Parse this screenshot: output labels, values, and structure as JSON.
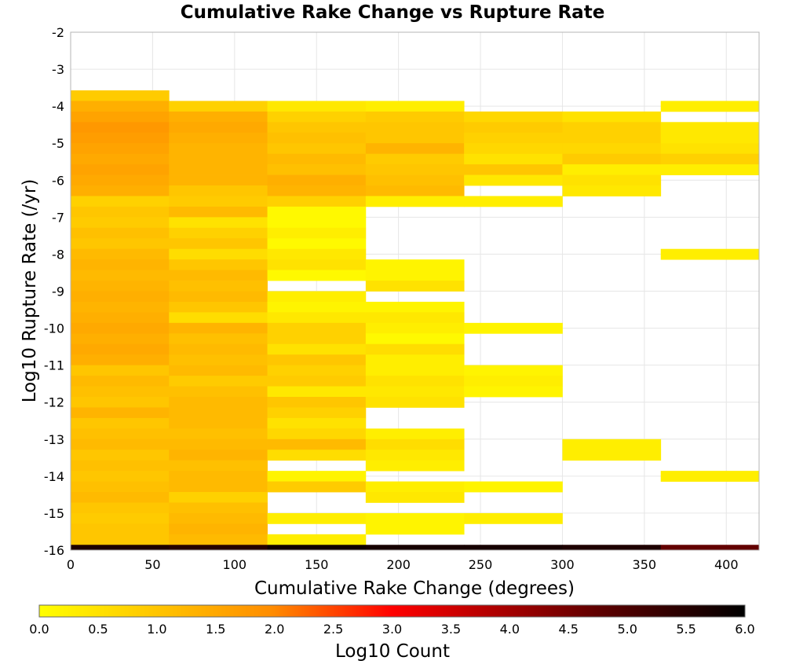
{
  "chart_data": {
    "type": "heatmap",
    "title": "Cumulative Rake Change vs Rupture Rate",
    "xlabel": "Cumulative Rake Change (degrees)",
    "ylabel": "Log10 Rupture Rate (/yr)",
    "xlim": [
      0,
      420
    ],
    "ylim": [
      -16,
      -2
    ],
    "x_ticks": [
      0,
      50,
      100,
      150,
      200,
      250,
      300,
      350,
      400
    ],
    "y_ticks": [
      -2,
      -3,
      -4,
      -5,
      -6,
      -7,
      -8,
      -9,
      -10,
      -11,
      -12,
      -13,
      -14,
      -15,
      -16
    ],
    "grid": true,
    "x_bin_width": 60,
    "y_bin_height": 0.2857,
    "x_bins": [
      0,
      60,
      120,
      180,
      240,
      300,
      360
    ],
    "colorbar": {
      "label": "Log10 Count",
      "min": 0.0,
      "max": 6.0,
      "ticks": [
        "0.0",
        "0.5",
        "1.0",
        "1.5",
        "2.0",
        "2.5",
        "3.0",
        "3.5",
        "4.0",
        "4.5",
        "5.0",
        "5.5",
        "6.0"
      ],
      "placement": "bottom"
    },
    "columns": [
      {
        "x": 0,
        "cells": [
          {
            "y": -3.714,
            "v": 0.9
          },
          {
            "y": -4.0,
            "v": 1.4
          },
          {
            "y": -4.286,
            "v": 1.6
          },
          {
            "y": -4.571,
            "v": 1.8
          },
          {
            "y": -4.857,
            "v": 1.7
          },
          {
            "y": -5.143,
            "v": 1.6
          },
          {
            "y": -5.429,
            "v": 1.5
          },
          {
            "y": -5.714,
            "v": 1.6
          },
          {
            "y": -6.0,
            "v": 1.5
          },
          {
            "y": -6.286,
            "v": 1.4
          },
          {
            "y": -6.571,
            "v": 0.8
          },
          {
            "y": -6.857,
            "v": 1.0
          },
          {
            "y": -7.143,
            "v": 0.9
          },
          {
            "y": -7.429,
            "v": 1.1
          },
          {
            "y": -7.714,
            "v": 1.0
          },
          {
            "y": -8.0,
            "v": 1.2
          },
          {
            "y": -8.286,
            "v": 1.3
          },
          {
            "y": -8.571,
            "v": 1.2
          },
          {
            "y": -8.857,
            "v": 1.3
          },
          {
            "y": -9.143,
            "v": 1.4
          },
          {
            "y": -9.429,
            "v": 1.3
          },
          {
            "y": -9.714,
            "v": 1.4
          },
          {
            "y": -10.0,
            "v": 1.5
          },
          {
            "y": -10.286,
            "v": 1.4
          },
          {
            "y": -10.571,
            "v": 1.5
          },
          {
            "y": -10.857,
            "v": 1.4
          },
          {
            "y": -11.143,
            "v": 1.0
          },
          {
            "y": -11.429,
            "v": 1.2
          },
          {
            "y": -11.714,
            "v": 1.1
          },
          {
            "y": -12.0,
            "v": 1.0
          },
          {
            "y": -12.286,
            "v": 1.3
          },
          {
            "y": -12.571,
            "v": 1.0
          },
          {
            "y": -12.857,
            "v": 1.1
          },
          {
            "y": -13.143,
            "v": 1.2
          },
          {
            "y": -13.429,
            "v": 1.0
          },
          {
            "y": -13.714,
            "v": 1.1
          },
          {
            "y": -14.0,
            "v": 1.0
          },
          {
            "y": -14.286,
            "v": 1.1
          },
          {
            "y": -14.571,
            "v": 1.2
          },
          {
            "y": -14.857,
            "v": 1.0
          },
          {
            "y": -15.143,
            "v": 0.9
          },
          {
            "y": -15.429,
            "v": 1.0
          },
          {
            "y": -15.714,
            "v": 1.0
          },
          {
            "y": -16.0,
            "v": 5.6
          }
        ]
      },
      {
        "x": 60,
        "cells": [
          {
            "y": -4.0,
            "v": 0.8
          },
          {
            "y": -4.286,
            "v": 1.4
          },
          {
            "y": -4.571,
            "v": 1.5
          },
          {
            "y": -4.857,
            "v": 1.4
          },
          {
            "y": -5.143,
            "v": 1.3
          },
          {
            "y": -5.429,
            "v": 1.3
          },
          {
            "y": -5.714,
            "v": 1.3
          },
          {
            "y": -6.0,
            "v": 1.3
          },
          {
            "y": -6.286,
            "v": 1.0
          },
          {
            "y": -6.571,
            "v": 0.9
          },
          {
            "y": -6.857,
            "v": 1.2
          },
          {
            "y": -7.143,
            "v": 0.5
          },
          {
            "y": -7.429,
            "v": 0.8
          },
          {
            "y": -7.714,
            "v": 1.0
          },
          {
            "y": -8.0,
            "v": 0.6
          },
          {
            "y": -8.286,
            "v": 1.0
          },
          {
            "y": -8.571,
            "v": 1.2
          },
          {
            "y": -8.857,
            "v": 1.1
          },
          {
            "y": -9.143,
            "v": 1.2
          },
          {
            "y": -9.429,
            "v": 1.0
          },
          {
            "y": -9.714,
            "v": 0.6
          },
          {
            "y": -10.0,
            "v": 1.3
          },
          {
            "y": -10.286,
            "v": 1.1
          },
          {
            "y": -10.571,
            "v": 1.2
          },
          {
            "y": -10.857,
            "v": 1.1
          },
          {
            "y": -11.143,
            "v": 1.2
          },
          {
            "y": -11.429,
            "v": 0.9
          },
          {
            "y": -11.714,
            "v": 1.1
          },
          {
            "y": -12.0,
            "v": 1.2
          },
          {
            "y": -12.286,
            "v": 1.2
          },
          {
            "y": -12.571,
            "v": 1.2
          },
          {
            "y": -12.857,
            "v": 1.1
          },
          {
            "y": -13.143,
            "v": 1.2
          },
          {
            "y": -13.429,
            "v": 1.3
          },
          {
            "y": -13.714,
            "v": 1.1
          },
          {
            "y": -14.0,
            "v": 1.2
          },
          {
            "y": -14.286,
            "v": 1.2
          },
          {
            "y": -14.571,
            "v": 0.8
          },
          {
            "y": -14.857,
            "v": 1.1
          },
          {
            "y": -15.143,
            "v": 1.2
          },
          {
            "y": -15.429,
            "v": 1.3
          },
          {
            "y": -15.714,
            "v": 1.2
          },
          {
            "y": -16.0,
            "v": 5.5
          }
        ]
      },
      {
        "x": 120,
        "cells": [
          {
            "y": -4.0,
            "v": 0.4
          },
          {
            "y": -4.286,
            "v": 0.8
          },
          {
            "y": -4.571,
            "v": 1.0
          },
          {
            "y": -4.857,
            "v": 1.1
          },
          {
            "y": -5.143,
            "v": 1.0
          },
          {
            "y": -5.429,
            "v": 1.2
          },
          {
            "y": -5.714,
            "v": 1.1
          },
          {
            "y": -6.0,
            "v": 1.4
          },
          {
            "y": -6.286,
            "v": 1.3
          },
          {
            "y": -6.571,
            "v": 0.8
          },
          {
            "y": -6.857,
            "v": 0.1
          },
          {
            "y": -7.143,
            "v": 0.1
          },
          {
            "y": -7.429,
            "v": 0.3
          },
          {
            "y": -7.714,
            "v": 0.1
          },
          {
            "y": -8.0,
            "v": 0.4
          },
          {
            "y": -8.286,
            "v": 0.5
          },
          {
            "y": -8.571,
            "v": 0.1
          },
          {
            "y": -9.143,
            "v": 0.3
          },
          {
            "y": -9.429,
            "v": 0.2
          },
          {
            "y": -9.714,
            "v": 0.4
          },
          {
            "y": -10.0,
            "v": 0.8
          },
          {
            "y": -10.286,
            "v": 0.8
          },
          {
            "y": -10.571,
            "v": 0.5
          },
          {
            "y": -10.857,
            "v": 1.0
          },
          {
            "y": -11.143,
            "v": 0.8
          },
          {
            "y": -11.429,
            "v": 0.9
          },
          {
            "y": -11.714,
            "v": 0.4
          },
          {
            "y": -12.0,
            "v": 1.0
          },
          {
            "y": -12.286,
            "v": 0.8
          },
          {
            "y": -12.571,
            "v": 0.5
          },
          {
            "y": -12.857,
            "v": 0.7
          },
          {
            "y": -13.143,
            "v": 1.2
          },
          {
            "y": -13.429,
            "v": 0.6
          },
          {
            "y": -14.0,
            "v": 0.2
          },
          {
            "y": -14.286,
            "v": 0.9
          },
          {
            "y": -15.143,
            "v": 0.3
          },
          {
            "y": -15.714,
            "v": 0.3
          },
          {
            "y": -16.0,
            "v": 5.8
          }
        ]
      },
      {
        "x": 180,
        "cells": [
          {
            "y": -4.0,
            "v": 0.3
          },
          {
            "y": -4.286,
            "v": 0.9
          },
          {
            "y": -4.571,
            "v": 1.0
          },
          {
            "y": -4.857,
            "v": 1.0
          },
          {
            "y": -5.143,
            "v": 1.3
          },
          {
            "y": -5.429,
            "v": 0.9
          },
          {
            "y": -5.714,
            "v": 1.0
          },
          {
            "y": -6.0,
            "v": 1.1
          },
          {
            "y": -6.286,
            "v": 1.2
          },
          {
            "y": -6.571,
            "v": 0.3
          },
          {
            "y": -8.286,
            "v": 0.2
          },
          {
            "y": -8.571,
            "v": 0.2
          },
          {
            "y": -8.857,
            "v": 0.5
          },
          {
            "y": -9.429,
            "v": 0.2
          },
          {
            "y": -9.714,
            "v": 0.4
          },
          {
            "y": -10.0,
            "v": 0.3
          },
          {
            "y": -10.286,
            "v": 0.1
          },
          {
            "y": -10.571,
            "v": 0.6
          },
          {
            "y": -10.857,
            "v": 0.3
          },
          {
            "y": -11.143,
            "v": 0.3
          },
          {
            "y": -11.429,
            "v": 0.5
          },
          {
            "y": -11.714,
            "v": 0.4
          },
          {
            "y": -12.0,
            "v": 0.5
          },
          {
            "y": -12.857,
            "v": 0.3
          },
          {
            "y": -13.143,
            "v": 0.6
          },
          {
            "y": -13.429,
            "v": 0.4
          },
          {
            "y": -13.714,
            "v": 0.3
          },
          {
            "y": -14.286,
            "v": 0.3
          },
          {
            "y": -14.571,
            "v": 0.4
          },
          {
            "y": -15.143,
            "v": 0.2
          },
          {
            "y": -15.429,
            "v": 0.2
          },
          {
            "y": -16.0,
            "v": 5.7
          }
        ]
      },
      {
        "x": 240,
        "cells": [
          {
            "y": -4.286,
            "v": 0.7
          },
          {
            "y": -4.571,
            "v": 0.9
          },
          {
            "y": -4.857,
            "v": 0.8
          },
          {
            "y": -5.143,
            "v": 0.7
          },
          {
            "y": -5.429,
            "v": 0.5
          },
          {
            "y": -5.714,
            "v": 1.0
          },
          {
            "y": -6.0,
            "v": 0.4
          },
          {
            "y": -6.571,
            "v": 0.3
          },
          {
            "y": -10.0,
            "v": 0.2
          },
          {
            "y": -11.143,
            "v": 0.2
          },
          {
            "y": -11.429,
            "v": 0.3
          },
          {
            "y": -11.714,
            "v": 0.2
          },
          {
            "y": -14.286,
            "v": 0.2
          },
          {
            "y": -15.143,
            "v": 0.3
          },
          {
            "y": -16.0,
            "v": 5.7
          }
        ]
      },
      {
        "x": 300,
        "cells": [
          {
            "y": -4.286,
            "v": 0.5
          },
          {
            "y": -4.571,
            "v": 0.8
          },
          {
            "y": -4.857,
            "v": 0.8
          },
          {
            "y": -5.143,
            "v": 0.7
          },
          {
            "y": -5.429,
            "v": 0.9
          },
          {
            "y": -5.714,
            "v": 0.3
          },
          {
            "y": -6.0,
            "v": 0.5
          },
          {
            "y": -6.286,
            "v": 0.4
          },
          {
            "y": -13.143,
            "v": 0.3
          },
          {
            "y": -13.429,
            "v": 0.3
          },
          {
            "y": -16.0,
            "v": 5.6
          }
        ]
      },
      {
        "x": 360,
        "cells": [
          {
            "y": -4.0,
            "v": 0.3
          },
          {
            "y": -4.571,
            "v": 0.4
          },
          {
            "y": -4.857,
            "v": 0.4
          },
          {
            "y": -5.143,
            "v": 0.5
          },
          {
            "y": -5.429,
            "v": 0.8
          },
          {
            "y": -5.714,
            "v": 0.3
          },
          {
            "y": -8.0,
            "v": 0.3
          },
          {
            "y": -14.0,
            "v": 0.3
          },
          {
            "y": -16.0,
            "v": 4.7
          }
        ]
      }
    ]
  }
}
